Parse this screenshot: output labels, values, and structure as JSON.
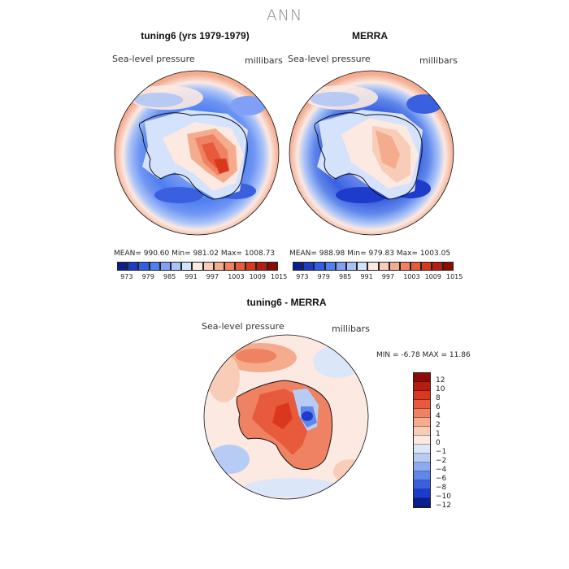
{
  "season": "ANN",
  "panels": [
    {
      "title": "tuning6 (yrs 1979-1979)",
      "variable": "Sea-level pressure",
      "units": "millibars",
      "stats": "MEAN= 990.60   Min= 981.02   Max= 1008.73"
    },
    {
      "title": "MERRA",
      "variable": "Sea-level pressure",
      "units": "millibars",
      "stats": "MEAN= 988.98   Min= 979.83   Max= 1003.05"
    }
  ],
  "colorbar": {
    "ticks": [
      "973",
      "979",
      "985",
      "991",
      "997",
      "1003",
      "1009",
      "1015"
    ],
    "colors": [
      "#0a1f8f",
      "#1c3cc8",
      "#2f5fe6",
      "#4f7ff0",
      "#7fa0f5",
      "#a9c3f8",
      "#d4e2fb",
      "#fbe9e2",
      "#f8cdb8",
      "#f4ab8e",
      "#ef8262",
      "#e85a3c",
      "#d9381f",
      "#b41d12",
      "#8c0c05"
    ]
  },
  "diff_panel": {
    "title": "tuning6 - MERRA",
    "variable": "Sea-level pressure",
    "units": "millibars",
    "stats": "MIN =   -6.78 MAX =   11.86",
    "ticks": [
      "12",
      "10",
      "8",
      "6",
      "4",
      "2",
      "1",
      "0",
      "−1",
      "−2",
      "−4",
      "−6",
      "−8",
      "−10",
      "−12"
    ],
    "colors": [
      "#8c0c05",
      "#b41d12",
      "#d9381f",
      "#e85a3c",
      "#ef8262",
      "#f4ab8e",
      "#f8cdb8",
      "#fbe9e2",
      "#dbe7f9",
      "#b7ccf5",
      "#8daaf0",
      "#5f86ea",
      "#3a60e0",
      "#1e3ccb",
      "#0a1f8f"
    ]
  },
  "chart_data": {
    "type": "heatmap",
    "projection": "south polar stereographic",
    "season": "ANN",
    "maps": [
      {
        "name": "tuning6 (yrs 1979-1979)",
        "field": "Sea-level pressure",
        "units": "millibars",
        "mean": 990.6,
        "min": 981.02,
        "max": 1008.73,
        "contour_levels": [
          973,
          979,
          985,
          991,
          997,
          1003,
          1009,
          1015
        ]
      },
      {
        "name": "MERRA",
        "field": "Sea-level pressure",
        "units": "millibars",
        "mean": 988.98,
        "min": 979.83,
        "max": 1003.05,
        "contour_levels": [
          973,
          979,
          985,
          991,
          997,
          1003,
          1009,
          1015
        ]
      },
      {
        "name": "tuning6 - MERRA",
        "field": "Sea-level pressure",
        "units": "millibars",
        "min": -6.78,
        "max": 11.86,
        "contour_levels": [
          -12,
          -10,
          -8,
          -6,
          -4,
          -2,
          -1,
          0,
          1,
          2,
          4,
          6,
          8,
          10,
          12
        ]
      }
    ]
  }
}
